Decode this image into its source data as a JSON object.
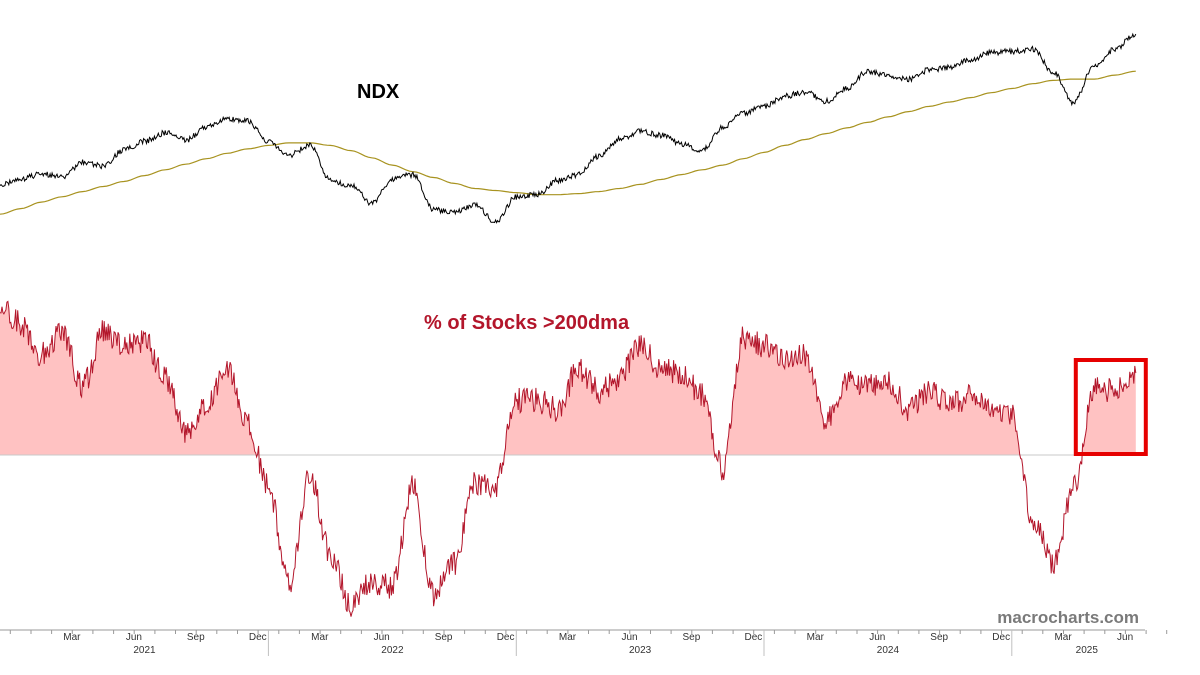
{
  "chart_data": [
    {
      "type": "line",
      "title": "NDX",
      "colors": {
        "price": "#000000",
        "moving_average": "#a89320"
      },
      "x": [
        "2020-12",
        "2021-01",
        "2021-02",
        "2021-03",
        "2021-04",
        "2021-05",
        "2021-06",
        "2021-07",
        "2021-08",
        "2021-09",
        "2021-10",
        "2021-11",
        "2021-12",
        "2022-01",
        "2022-02",
        "2022-03",
        "2022-04",
        "2022-05",
        "2022-06",
        "2022-07",
        "2022-08",
        "2022-09",
        "2022-10",
        "2022-11",
        "2022-12",
        "2023-01",
        "2023-02",
        "2023-03",
        "2023-04",
        "2023-05",
        "2023-06",
        "2023-07",
        "2023-08",
        "2023-09",
        "2023-10",
        "2023-11",
        "2023-12",
        "2024-01",
        "2024-02",
        "2024-03",
        "2024-04",
        "2024-05",
        "2024-06",
        "2024-07",
        "2024-08",
        "2024-09",
        "2024-10",
        "2024-11",
        "2024-12",
        "2025-01",
        "2025-02",
        "2025-03",
        "2025-04",
        "2025-05",
        "2025-06",
        "2025-07"
      ],
      "series": [
        {
          "values": [
            12650,
            12950,
            13250,
            13050,
            13850,
            13650,
            14550,
            15050,
            15550,
            15100,
            15900,
            16400,
            16300,
            15000,
            14250,
            14800,
            12900,
            12650,
            11800,
            12950,
            13200,
            11500,
            11400,
            11700,
            10950,
            12100,
            12200,
            12900,
            13200,
            14200,
            15150,
            15650,
            15400,
            14900,
            14500,
            15900,
            16800,
            17250,
            17950,
            18250,
            17600,
            18500,
            19800,
            19500,
            19200,
            19900,
            20100,
            20750,
            21300,
            21400,
            21600,
            19700,
            17500,
            20250,
            21600,
            22900
          ]
        },
        {
          "values": [
            11300,
            11550,
            11850,
            12100,
            12350,
            12600,
            12850,
            13150,
            13450,
            13750,
            14050,
            14350,
            14600,
            14800,
            14950,
            14950,
            14800,
            14500,
            14100,
            13700,
            13350,
            13050,
            12750,
            12500,
            12400,
            12300,
            12200,
            12200,
            12250,
            12350,
            12500,
            12700,
            12950,
            13200,
            13450,
            13700,
            14050,
            14400,
            14800,
            15150,
            15500,
            15850,
            16200,
            16550,
            16900,
            17250,
            17550,
            17850,
            18200,
            18500,
            18850,
            19100,
            19200,
            19200,
            19500,
            19800
          ]
        }
      ]
    },
    {
      "type": "area",
      "title": "% of Stocks >200dma",
      "colors": {
        "line": "#b3162b",
        "fill": "#ffc2c2",
        "highlight_box": "#e60000"
      },
      "baseline": 0,
      "x": [
        "2020-12",
        "2021-01",
        "2021-02",
        "2021-03",
        "2021-04",
        "2021-05",
        "2021-06",
        "2021-07",
        "2021-08",
        "2021-09",
        "2021-10",
        "2021-11",
        "2021-12",
        "2022-01",
        "2022-02",
        "2022-03",
        "2022-04",
        "2022-05",
        "2022-06",
        "2022-07",
        "2022-08",
        "2022-09",
        "2022-10",
        "2022-11",
        "2022-12",
        "2023-01",
        "2023-02",
        "2023-03",
        "2023-04",
        "2023-05",
        "2023-06",
        "2023-07",
        "2023-08",
        "2023-09",
        "2023-10",
        "2023-11",
        "2023-12",
        "2024-01",
        "2024-02",
        "2024-03",
        "2024-04",
        "2024-05",
        "2024-06",
        "2024-07",
        "2024-08",
        "2024-09",
        "2024-10",
        "2024-11",
        "2024-12",
        "2025-01",
        "2025-02",
        "2025-03",
        "2025-04",
        "2025-05",
        "2025-06",
        "2025-07"
      ],
      "series": [
        {
          "values": [
            32,
            29,
            22,
            27,
            15,
            27,
            24,
            25,
            17,
            5,
            11,
            19,
            7,
            -7,
            -28,
            -4,
            -22,
            -33,
            -28,
            -29,
            -7,
            -31,
            -24,
            -6,
            -7,
            12,
            12,
            10,
            19,
            14,
            17,
            24,
            19,
            18,
            13,
            -3,
            26,
            24,
            21,
            22,
            8,
            16,
            15,
            16,
            10,
            14,
            11,
            13,
            10,
            9,
            -14,
            -24,
            -7,
            15,
            14,
            18
          ]
        }
      ],
      "highlight_range": [
        "2025-04",
        "2025-07"
      ]
    }
  ],
  "axis": {
    "months": [
      {
        "label": "Mar",
        "date": "2021-03"
      },
      {
        "label": "Jun",
        "date": "2021-06"
      },
      {
        "label": "Sep",
        "date": "2021-09"
      },
      {
        "label": "Dec",
        "date": "2021-12"
      },
      {
        "label": "Mar",
        "date": "2022-03"
      },
      {
        "label": "Jun",
        "date": "2022-06"
      },
      {
        "label": "Sep",
        "date": "2022-09"
      },
      {
        "label": "Dec",
        "date": "2022-12"
      },
      {
        "label": "Mar",
        "date": "2023-03"
      },
      {
        "label": "Jun",
        "date": "2023-06"
      },
      {
        "label": "Sep",
        "date": "2023-09"
      },
      {
        "label": "Dec",
        "date": "2023-12"
      },
      {
        "label": "Mar",
        "date": "2024-03"
      },
      {
        "label": "Jun",
        "date": "2024-06"
      },
      {
        "label": "Sep",
        "date": "2024-09"
      },
      {
        "label": "Dec",
        "date": "2024-12"
      },
      {
        "label": "Mar",
        "date": "2025-03"
      },
      {
        "label": "Jun",
        "date": "2025-06"
      }
    ],
    "years": [
      "2021",
      "2022",
      "2023",
      "2024",
      "2025"
    ]
  },
  "watermark": "macrocharts.com"
}
